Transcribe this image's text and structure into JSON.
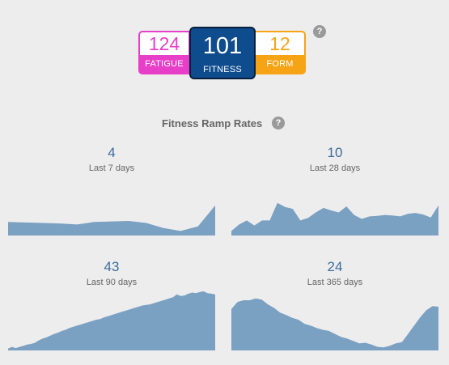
{
  "metrics": {
    "fatigue": {
      "value": "124",
      "label": "FATIGUE"
    },
    "fitness": {
      "value": "101",
      "label": "FITNESS"
    },
    "form": {
      "value": "12",
      "label": "FORM"
    },
    "help": "?"
  },
  "ramp": {
    "title": "Fitness Ramp Rates",
    "help": "?",
    "panels": [
      {
        "value": "4",
        "label": "Last 7 days",
        "series": [
          0.27,
          0.26,
          0.25,
          0.24,
          0.22,
          0.27,
          0.28,
          0.29,
          0.25,
          0.15,
          0.09,
          0.18,
          0.6
        ]
      },
      {
        "value": "10",
        "label": "Last 28 days",
        "series": [
          0.09,
          0.22,
          0.3,
          0.2,
          0.3,
          0.3,
          0.65,
          0.57,
          0.53,
          0.3,
          0.35,
          0.46,
          0.55,
          0.5,
          0.46,
          0.58,
          0.41,
          0.33,
          0.38,
          0.39,
          0.41,
          0.4,
          0.38,
          0.43,
          0.45,
          0.42,
          0.36,
          0.6
        ]
      },
      {
        "value": "43",
        "label": "Last 90 days",
        "series": [
          0.03,
          0.06,
          0.04,
          0.06,
          0.08,
          0.1,
          0.11,
          0.13,
          0.17,
          0.2,
          0.22,
          0.25,
          0.28,
          0.3,
          0.33,
          0.35,
          0.38,
          0.4,
          0.42,
          0.44,
          0.46,
          0.48,
          0.5,
          0.52,
          0.53,
          0.56,
          0.58,
          0.6,
          0.62,
          0.64,
          0.66,
          0.68,
          0.7,
          0.72,
          0.74,
          0.76,
          0.77,
          0.78,
          0.8,
          0.82,
          0.84,
          0.86,
          0.88,
          0.9,
          0.95,
          0.92,
          0.93,
          0.96,
          0.98,
          0.97,
          0.99,
          1.0,
          0.97,
          0.96,
          0.95
        ]
      },
      {
        "value": "24",
        "label": "Last 365 days",
        "series": [
          0.7,
          0.82,
          0.85,
          0.85,
          0.88,
          0.86,
          0.78,
          0.72,
          0.64,
          0.6,
          0.55,
          0.52,
          0.45,
          0.42,
          0.38,
          0.35,
          0.33,
          0.28,
          0.23,
          0.2,
          0.16,
          0.12,
          0.13,
          0.1,
          0.06,
          0.05,
          0.08,
          0.12,
          0.14,
          0.28,
          0.42,
          0.56,
          0.68,
          0.75,
          0.74
        ]
      }
    ]
  }
}
